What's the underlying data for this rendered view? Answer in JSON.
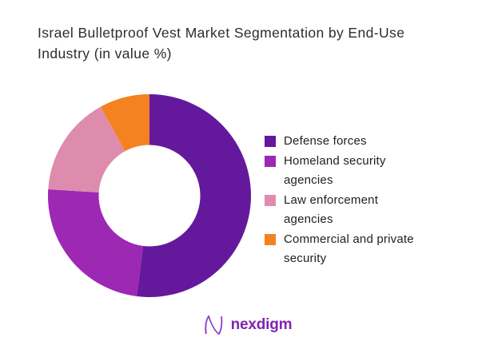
{
  "header": {
    "title": "Israel Bulletproof Vest Market Segmentation by End-Use\nIndustry (in value %)"
  },
  "chart_data": {
    "type": "pie",
    "subtype": "donut",
    "title": "Israel Bulletproof Vest Market Segmentation by End-Use Industry (in value %)",
    "categories": [
      "Defense forces",
      "Homeland security agencies",
      "Law enforcement agencies",
      "Commercial and private security"
    ],
    "values": [
      52,
      24,
      16,
      8
    ],
    "unit": "value %",
    "colors": [
      "#64199d",
      "#9c28b3",
      "#de8cae",
      "#f58220"
    ],
    "start_angle_deg": 0,
    "direction": "clockwise",
    "inner_radius_ratio": 0.5,
    "legend_position": "right",
    "legend_labels_wrapped": [
      "Defense forces",
      "Homeland security\nagencies",
      "Law enforcement\nagencies",
      "Commercial and private\nsecurity"
    ]
  },
  "footer": {
    "brand": "nexdigm"
  },
  "theme": {
    "background": "#ffffff",
    "title_color": "#2d2d2d",
    "legend_text_color": "#212121",
    "logo_purple": "#8123b0",
    "logo_mark_light": "#c39be8",
    "logo_mark_dark": "#8b35c9"
  }
}
